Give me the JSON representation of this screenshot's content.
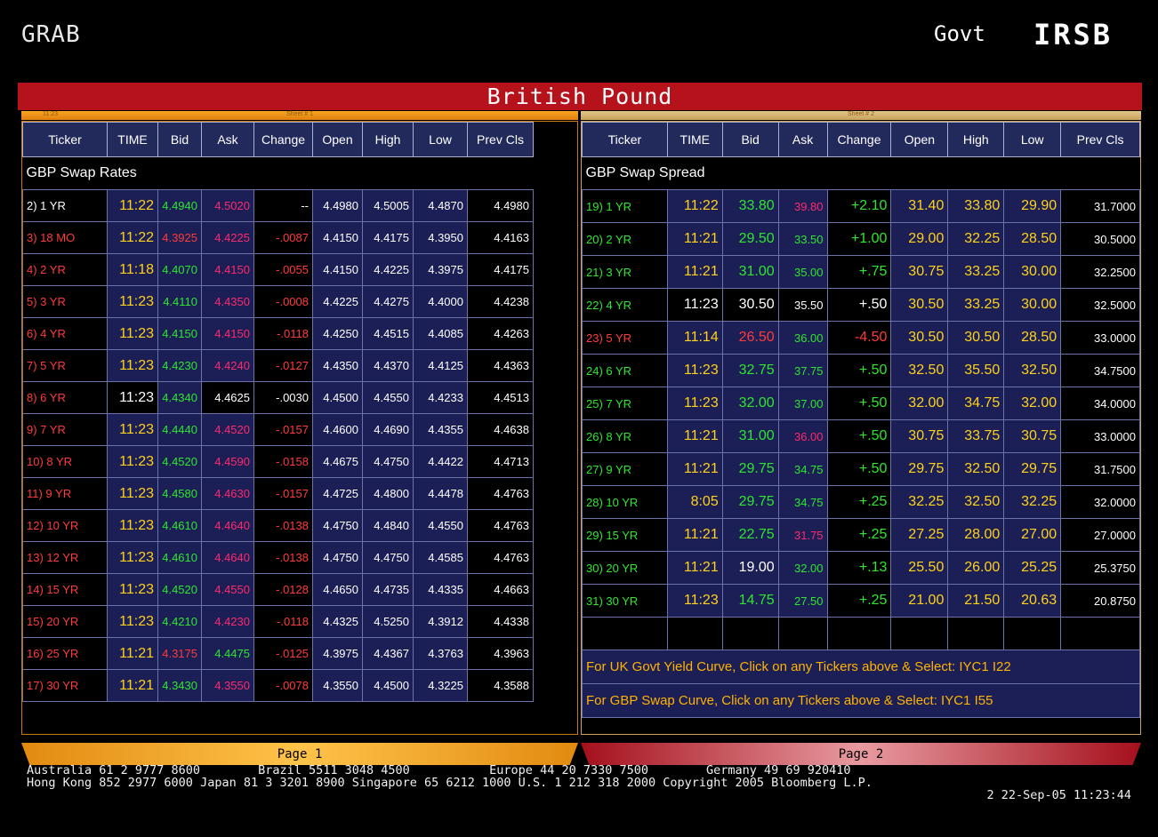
{
  "header": {
    "left": "GRAB",
    "govt": "Govt",
    "code": "IRSB"
  },
  "title": "British Pound",
  "sheet1": {
    "left": "11:23",
    "label": "Sheet # 1"
  },
  "sheet2": {
    "label": "Sheet # 2"
  },
  "columns": [
    "Ticker",
    "TIME",
    "Bid",
    "Ask",
    "Change",
    "Open",
    "High",
    "Low",
    "Prev Cls"
  ],
  "left": {
    "section": "GBP Swap Rates",
    "rows": [
      {
        "ticker": "2) 1 YR",
        "time": "11:22",
        "bid": "4.4940",
        "ask": "4.5020",
        "chg": "--",
        "open": "4.4980",
        "high": "4.5005",
        "low": "4.4870",
        "prev": "4.4980",
        "tc": "w",
        "ac": "mg",
        "cc": "w"
      },
      {
        "ticker": "3) 18 MO",
        "time": "11:22",
        "bid": "4.3925",
        "ask": "4.4225",
        "chg": "-.0087",
        "open": "4.4150",
        "high": "4.4175",
        "low": "4.3950",
        "prev": "4.4163",
        "tc": "r",
        "bc": "r",
        "ac": "mg",
        "cc": "r"
      },
      {
        "ticker": "4) 2 YR",
        "time": "11:18",
        "bid": "4.4070",
        "ask": "4.4150",
        "chg": "-.0055",
        "open": "4.4150",
        "high": "4.4225",
        "low": "4.3975",
        "prev": "4.4175",
        "tc": "r",
        "ac": "mg",
        "cc": "r"
      },
      {
        "ticker": "5) 3 YR",
        "time": "11:23",
        "bid": "4.4110",
        "ask": "4.4350",
        "chg": "-.0008",
        "open": "4.4225",
        "high": "4.4275",
        "low": "4.4000",
        "prev": "4.4238",
        "tc": "r",
        "ac": "mg",
        "cc": "r"
      },
      {
        "ticker": "6) 4 YR",
        "time": "11:23",
        "bid": "4.4150",
        "ask": "4.4150",
        "chg": "-.0118",
        "open": "4.4250",
        "high": "4.4515",
        "low": "4.4085",
        "prev": "4.4263",
        "tc": "r",
        "ac": "mg",
        "cc": "r"
      },
      {
        "ticker": "7) 5 YR",
        "time": "11:23",
        "bid": "4.4230",
        "ask": "4.4240",
        "chg": "-.0127",
        "open": "4.4350",
        "high": "4.4370",
        "low": "4.4125",
        "prev": "4.4363",
        "tc": "r",
        "ac": "mg",
        "cc": "r"
      },
      {
        "ticker": "8) 6 YR",
        "time": "11:23",
        "bid": "4.4340",
        "ask": "4.4625",
        "chg": "-.0030",
        "open": "4.4500",
        "high": "4.4550",
        "low": "4.4233",
        "prev": "4.4513",
        "tc": "r",
        "ac": "w",
        "cc": "w",
        "timec": "w",
        "askbg": "black"
      },
      {
        "ticker": "9) 7 YR",
        "time": "11:23",
        "bid": "4.4440",
        "ask": "4.4520",
        "chg": "-.0157",
        "open": "4.4600",
        "high": "4.4690",
        "low": "4.4355",
        "prev": "4.4638",
        "tc": "r",
        "ac": "mg",
        "cc": "r"
      },
      {
        "ticker": "10) 8 YR",
        "time": "11:23",
        "bid": "4.4520",
        "ask": "4.4590",
        "chg": "-.0158",
        "open": "4.4675",
        "high": "4.4750",
        "low": "4.4422",
        "prev": "4.4713",
        "tc": "r",
        "ac": "mg",
        "cc": "r"
      },
      {
        "ticker": "11) 9 YR",
        "time": "11:23",
        "bid": "4.4580",
        "ask": "4.4630",
        "chg": "-.0157",
        "open": "4.4725",
        "high": "4.4800",
        "low": "4.4478",
        "prev": "4.4763",
        "tc": "r",
        "ac": "mg",
        "cc": "r"
      },
      {
        "ticker": "12) 10 YR",
        "time": "11:23",
        "bid": "4.4610",
        "ask": "4.4640",
        "chg": "-.0138",
        "open": "4.4750",
        "high": "4.4840",
        "low": "4.4550",
        "prev": "4.4763",
        "tc": "r",
        "ac": "mg",
        "cc": "r"
      },
      {
        "ticker": "13) 12 YR",
        "time": "11:23",
        "bid": "4.4610",
        "ask": "4.4640",
        "chg": "-.0138",
        "open": "4.4750",
        "high": "4.4750",
        "low": "4.4585",
        "prev": "4.4763",
        "tc": "r",
        "ac": "mg",
        "cc": "r"
      },
      {
        "ticker": "14) 15 YR",
        "time": "11:23",
        "bid": "4.4520",
        "ask": "4.4550",
        "chg": "-.0128",
        "open": "4.4650",
        "high": "4.4735",
        "low": "4.4335",
        "prev": "4.4663",
        "tc": "r",
        "ac": "mg",
        "cc": "r"
      },
      {
        "ticker": "15) 20 YR",
        "time": "11:23",
        "bid": "4.4210",
        "ask": "4.4230",
        "chg": "-.0118",
        "open": "4.4325",
        "high": "4.5250",
        "low": "4.3912",
        "prev": "4.4338",
        "tc": "r",
        "ac": "mg",
        "cc": "r"
      },
      {
        "ticker": "16) 25 YR",
        "time": "11:21",
        "bid": "4.3175",
        "ask": "4.4475",
        "chg": "-.0125",
        "open": "4.3975",
        "high": "4.4367",
        "low": "4.3763",
        "prev": "4.3963",
        "tc": "r",
        "bc": "r",
        "ac": "g",
        "cc": "r"
      },
      {
        "ticker": "17) 30 YR",
        "time": "11:21",
        "bid": "4.3430",
        "ask": "4.3550",
        "chg": "-.0078",
        "open": "4.3550",
        "high": "4.4500",
        "low": "4.3225",
        "prev": "4.3588",
        "tc": "r",
        "ac": "mg",
        "cc": "r"
      }
    ]
  },
  "right": {
    "section": "GBP Swap Spread",
    "rows": [
      {
        "ticker": "19) 1 YR",
        "time": "11:22",
        "bid": "33.80",
        "ask": "39.80",
        "chg": "+2.10",
        "open": "31.40",
        "high": "33.80",
        "low": "29.90",
        "prev": "31.7000",
        "ac": "mg"
      },
      {
        "ticker": "20) 2 YR",
        "time": "11:21",
        "bid": "29.50",
        "ask": "33.50",
        "chg": "+1.00",
        "open": "29.00",
        "high": "32.25",
        "low": "28.50",
        "prev": "30.5000",
        "ac": "g"
      },
      {
        "ticker": "21) 3 YR",
        "time": "11:21",
        "bid": "31.00",
        "ask": "35.00",
        "chg": "+.75",
        "open": "30.75",
        "high": "33.25",
        "low": "30.00",
        "prev": "32.2500",
        "ac": "g"
      },
      {
        "ticker": "22) 4 YR",
        "time": "11:23",
        "bid": "30.50",
        "ask": "35.50",
        "chg": "+.50",
        "open": "30.50",
        "high": "33.25",
        "low": "30.00",
        "prev": "32.5000",
        "ac": "w",
        "bc": "w",
        "cc": "w",
        "timec": "w",
        "black": true
      },
      {
        "ticker": "23) 5 YR",
        "time": "11:14",
        "bid": "26.50",
        "ask": "36.00",
        "chg": "-4.50",
        "open": "30.50",
        "high": "30.50",
        "low": "28.50",
        "prev": "33.0000",
        "tc": "r",
        "bc": "r",
        "ac": "g",
        "cc": "r"
      },
      {
        "ticker": "24) 6 YR",
        "time": "11:23",
        "bid": "32.75",
        "ask": "37.75",
        "chg": "+.50",
        "open": "32.50",
        "high": "35.50",
        "low": "32.50",
        "prev": "34.7500",
        "ac": "g"
      },
      {
        "ticker": "25) 7 YR",
        "time": "11:23",
        "bid": "32.00",
        "ask": "37.00",
        "chg": "+.50",
        "open": "32.00",
        "high": "34.75",
        "low": "32.00",
        "prev": "34.0000",
        "ac": "g"
      },
      {
        "ticker": "26) 8 YR",
        "time": "11:21",
        "bid": "31.00",
        "ask": "36.00",
        "chg": "+.50",
        "open": "30.75",
        "high": "33.75",
        "low": "30.75",
        "prev": "33.0000",
        "ac": "mg"
      },
      {
        "ticker": "27) 9 YR",
        "time": "11:21",
        "bid": "29.75",
        "ask": "34.75",
        "chg": "+.50",
        "open": "29.75",
        "high": "32.50",
        "low": "29.75",
        "prev": "31.7500",
        "ac": "g"
      },
      {
        "ticker": "28) 10 YR",
        "time": "8:05",
        "bid": "29.75",
        "ask": "34.75",
        "chg": "+.25",
        "open": "32.25",
        "high": "32.50",
        "low": "32.25",
        "prev": "32.0000",
        "ac": "g"
      },
      {
        "ticker": "29) 15 YR",
        "time": "11:21",
        "bid": "22.75",
        "ask": "31.75",
        "chg": "+.25",
        "open": "27.25",
        "high": "28.00",
        "low": "27.00",
        "prev": "27.0000",
        "ac": "mg"
      },
      {
        "ticker": "30) 20 YR",
        "time": "11:21",
        "bid": "19.00",
        "ask": "32.00",
        "chg": "+.13",
        "open": "25.50",
        "high": "26.00",
        "low": "25.25",
        "prev": "25.3750",
        "ac": "g",
        "bc": "w"
      },
      {
        "ticker": "31) 30 YR",
        "time": "11:23",
        "bid": "14.75",
        "ask": "27.50",
        "chg": "+.25",
        "open": "21.00",
        "high": "21.50",
        "low": "20.63",
        "prev": "20.8750",
        "ac": "g"
      }
    ],
    "notes": [
      "For UK Govt Yield Curve, Click on any Tickers above & Select: IYC1 I22",
      "For GBP Swap Curve, Click on any Tickers above & Select: IYC1 I55"
    ]
  },
  "pages": {
    "p1": "Page 1",
    "p2": "Page 2"
  },
  "footer": {
    "line1": "Australia 61 2 9777 8600        Brazil 5511 3048 4500           Europe 44 20 7330 7500        Germany 49 69 920410",
    "line2": "Hong Kong 852 2977 6000 Japan 81 3 3201 8900 Singapore 65 6212 1000 U.S. 1 212 318 2000 Copyright 2005 Bloomberg L.P.",
    "line3": "2 22-Sep-05 11:23:44"
  },
  "colors": {
    "title_bar": "#b5121b",
    "header_bg": "#222a5c",
    "cell_blue": "#1b1f55",
    "note_text": "#ffb300",
    "page1": "#f0a020",
    "page2": "#c01a28"
  }
}
